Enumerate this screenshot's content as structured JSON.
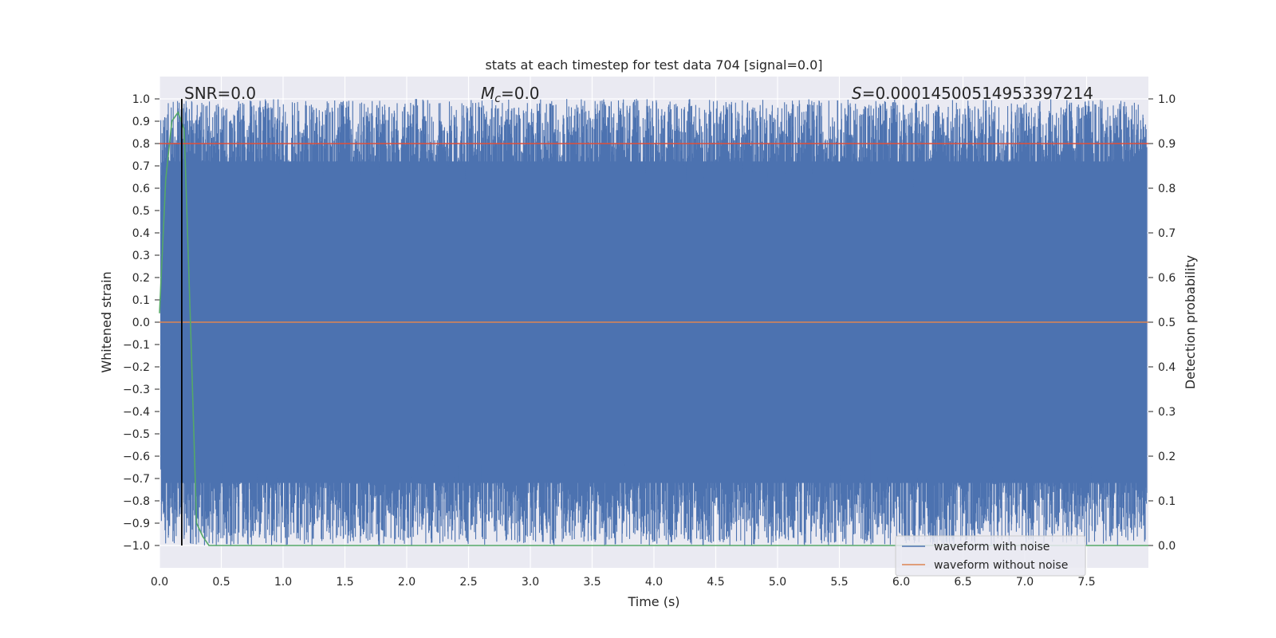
{
  "chart_data": {
    "type": "line",
    "title": "stats at each timestep for test data 704 [signal=0.0]",
    "xlabel": "Time (s)",
    "ylabel_left": "Whitened strain",
    "ylabel_right": "Detection probability",
    "xlim": [
      0.0,
      8.0
    ],
    "ylim_left": [
      -1.1,
      1.1
    ],
    "ylim_right": [
      -0.05,
      1.05
    ],
    "x_ticks": [
      "0.0",
      "0.5",
      "1.0",
      "1.5",
      "2.0",
      "2.5",
      "3.0",
      "3.5",
      "4.0",
      "4.5",
      "5.0",
      "5.5",
      "6.0",
      "6.5",
      "7.0",
      "7.5"
    ],
    "y_ticks_left": [
      "1.0",
      "0.9",
      "0.8",
      "0.7",
      "0.6",
      "0.5",
      "0.4",
      "0.3",
      "0.2",
      "0.1",
      "0.0",
      "−0.1",
      "−0.2",
      "−0.3",
      "−0.4",
      "−0.5",
      "−0.6",
      "−0.7",
      "−0.8",
      "−0.9",
      "−1.0"
    ],
    "y_ticks_right": [
      "1.0",
      "0.9",
      "0.8",
      "0.7",
      "0.6",
      "0.5",
      "0.4",
      "0.3",
      "0.2",
      "0.1",
      "0.0"
    ],
    "grid": true,
    "legend_position": "lower-right",
    "annotations": {
      "snr": "SNR=0.0",
      "mc_symbol": "M",
      "mc_subscript": "c",
      "mc_value": "=0.0",
      "s_symbol": "S",
      "s_value": "=0.00014500514953397214"
    },
    "series": [
      {
        "name": "waveform with noise",
        "color": "#4c72b0",
        "description_level": "dense noise spanning approximately -1.0 to 1.0 across the full 0–8 s range",
        "y_range": [
          -1.0,
          1.0
        ]
      },
      {
        "name": "waveform without noise",
        "color": "#dd8452",
        "x": [
          0.0,
          8.0
        ],
        "y": [
          0.0,
          0.0
        ]
      },
      {
        "color": "#55a868",
        "axis": "right",
        "x": [
          0.0,
          0.05,
          0.1,
          0.15,
          0.2,
          0.25,
          0.3,
          0.35,
          0.4,
          8.0
        ],
        "y": [
          0.52,
          0.82,
          0.95,
          0.97,
          0.93,
          0.5,
          0.05,
          0.02,
          0.0,
          0.0
        ]
      },
      {
        "color": "#dd4f3a",
        "axis": "right",
        "x": [
          0.0,
          8.0
        ],
        "y": [
          0.9,
          0.9
        ]
      }
    ],
    "vertical_marker": {
      "x": 0.18,
      "color": "#000000"
    },
    "colors": {
      "plot_background": "#eaeaf2",
      "grid": "#ffffff",
      "noise": "#4c72b0"
    }
  }
}
